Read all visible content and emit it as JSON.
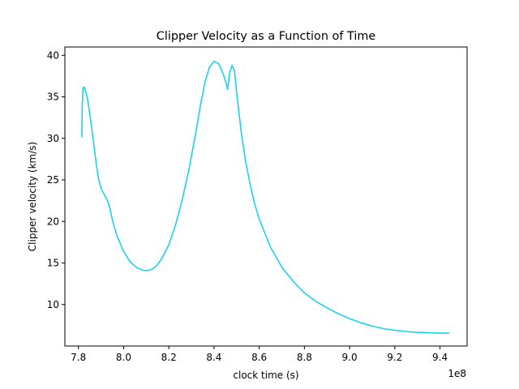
{
  "chart_data": {
    "type": "line",
    "title": "Clipper Velocity as a Function of Time",
    "xlabel": "clock time (s)",
    "ylabel": "Clipper velocity (km/s)",
    "x_offset_label": "1e8",
    "x_ticks": [
      "7.8",
      "8.0",
      "8.2",
      "8.4",
      "8.6",
      "8.8",
      "9.0",
      "9.2",
      "9.4"
    ],
    "y_ticks": [
      "10",
      "15",
      "20",
      "25",
      "30",
      "35",
      "40"
    ],
    "xlim": [
      7.74,
      9.52
    ],
    "ylim": [
      5.0,
      41.0
    ],
    "grid": false,
    "colors": {
      "line": "#17d4f0"
    },
    "series": [
      {
        "x": [
          7.815,
          7.817,
          7.82,
          7.825,
          7.83,
          7.84,
          7.85,
          7.86,
          7.87,
          7.88,
          7.89,
          7.895,
          7.9,
          7.93,
          7.935,
          7.94,
          7.95,
          7.97,
          8.0,
          8.03,
          8.06,
          8.09,
          8.11,
          8.13,
          8.15,
          8.17,
          8.2,
          8.23,
          8.26,
          8.29,
          8.32,
          8.34,
          8.36,
          8.38,
          8.4,
          8.42,
          8.44,
          8.455,
          8.46,
          8.47,
          8.48,
          8.49,
          8.495,
          8.5,
          8.51,
          8.52,
          8.54,
          8.56,
          8.58,
          8.6,
          8.65,
          8.7,
          8.75,
          8.8,
          8.85,
          8.9,
          8.95,
          9.0,
          9.05,
          9.1,
          9.15,
          9.2,
          9.25,
          9.3,
          9.35,
          9.4,
          9.44
        ],
        "y": [
          30.2,
          34.0,
          36.0,
          36.2,
          35.9,
          34.8,
          33.0,
          31.0,
          28.8,
          26.7,
          25.0,
          24.5,
          24.0,
          22.4,
          22.0,
          21.5,
          20.2,
          18.3,
          16.4,
          15.1,
          14.4,
          14.1,
          14.1,
          14.3,
          14.8,
          15.6,
          17.2,
          19.6,
          22.7,
          26.4,
          30.8,
          34.0,
          36.8,
          38.6,
          39.3,
          39.0,
          37.8,
          36.5,
          35.9,
          38.0,
          38.8,
          38.2,
          37.0,
          35.5,
          33.2,
          30.8,
          27.2,
          24.4,
          22.1,
          20.3,
          16.9,
          14.5,
          12.8,
          11.4,
          10.4,
          9.6,
          8.9,
          8.3,
          7.8,
          7.4,
          7.1,
          6.9,
          6.75,
          6.65,
          6.6,
          6.55,
          6.55
        ]
      }
    ]
  }
}
